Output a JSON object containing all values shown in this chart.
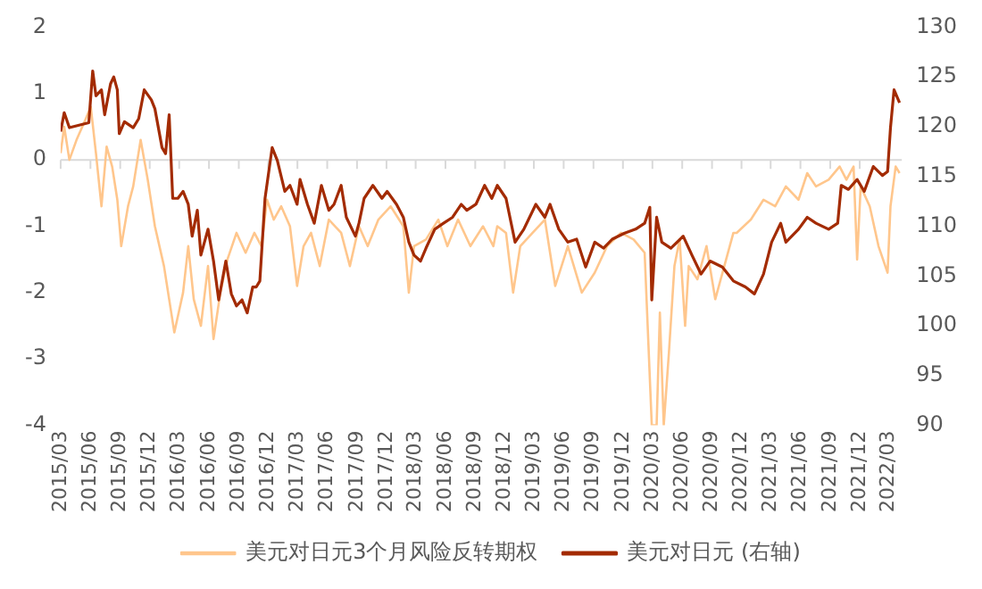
{
  "chart_data": {
    "type": "line",
    "xlim": [
      "2015-03-01",
      "2022-04-10"
    ],
    "xticks": [
      {
        "value": "2015-03",
        "label": "2015/03"
      },
      {
        "value": "2015-06",
        "label": "2015/06"
      },
      {
        "value": "2015-09",
        "label": "2015/09"
      },
      {
        "value": "2015-12",
        "label": "2015/12"
      },
      {
        "value": "2016-03",
        "label": "2016/03"
      },
      {
        "value": "2016-06",
        "label": "2016/06"
      },
      {
        "value": "2016-09",
        "label": "2016/09"
      },
      {
        "value": "2016-12",
        "label": "2016/12"
      },
      {
        "value": "2017-03",
        "label": "2017/03"
      },
      {
        "value": "2017-06",
        "label": "2017/06"
      },
      {
        "value": "2017-09",
        "label": "2017/09"
      },
      {
        "value": "2017-12",
        "label": "2017/12"
      },
      {
        "value": "2018-03",
        "label": "2018/03"
      },
      {
        "value": "2018-06",
        "label": "2018/06"
      },
      {
        "value": "2018-09",
        "label": "2018/09"
      },
      {
        "value": "2018-12",
        "label": "2018/12"
      },
      {
        "value": "2019-03",
        "label": "2019/03"
      },
      {
        "value": "2019-06",
        "label": "2019/06"
      },
      {
        "value": "2019-09",
        "label": "2019/09"
      },
      {
        "value": "2019-12",
        "label": "2019/12"
      },
      {
        "value": "2020-03",
        "label": "2020/03"
      },
      {
        "value": "2020-06",
        "label": "2020/06"
      },
      {
        "value": "2020-09",
        "label": "2020/09"
      },
      {
        "value": "2020-12",
        "label": "2020/12"
      },
      {
        "value": "2021-03",
        "label": "2021/03"
      },
      {
        "value": "2021-06",
        "label": "2021/06"
      },
      {
        "value": "2021-09",
        "label": "2021/09"
      },
      {
        "value": "2021-12",
        "label": "2021/12"
      },
      {
        "value": "2022-03",
        "label": "2022/03"
      }
    ],
    "ylim": [
      -4,
      2
    ],
    "yticks": [
      -4,
      -3,
      -2,
      -1,
      0,
      1,
      2
    ],
    "y2lim": [
      90,
      130
    ],
    "y2ticks": [
      90,
      95,
      100,
      105,
      110,
      115,
      120,
      125,
      130
    ],
    "grid": false,
    "legend": "bottom",
    "marker": "none",
    "line_style": "solid",
    "ref_lines": [
      {
        "axis": "y",
        "value": 0,
        "color": "#d9d9d9"
      }
    ],
    "series": [
      {
        "name": "美元对日元3个月风险反转期权",
        "color": "#ffc68c",
        "x": [
          "2015-03-01",
          "2015-03-12",
          "2015-03-28",
          "2015-04-19",
          "2015-05-16",
          "2015-06-02",
          "2015-06-18",
          "2015-07-05",
          "2015-07-21",
          "2015-08-07",
          "2015-08-23",
          "2015-09-04",
          "2015-09-25",
          "2015-10-11",
          "2015-11-03",
          "2015-11-25",
          "2015-12-17",
          "2016-01-14",
          "2016-01-30",
          "2016-02-15",
          "2016-03-13",
          "2016-03-29",
          "2016-04-15",
          "2016-05-07",
          "2016-05-29",
          "2016-06-15",
          "2016-07-06",
          "2016-07-28",
          "2016-08-25",
          "2016-09-22",
          "2016-10-19",
          "2016-11-10",
          "2016-11-27",
          "2016-12-18",
          "2017-01-10",
          "2017-02-06",
          "2017-02-28",
          "2017-03-20",
          "2017-04-12",
          "2017-05-09",
          "2017-06-06",
          "2017-07-14",
          "2017-08-10",
          "2017-09-07",
          "2017-10-04",
          "2017-11-06",
          "2017-12-14",
          "2018-01-22",
          "2018-02-08",
          "2018-02-24",
          "2018-04-02",
          "2018-05-10",
          "2018-06-07",
          "2018-07-10",
          "2018-08-17",
          "2018-09-25",
          "2018-10-27",
          "2018-11-08",
          "2018-12-05",
          "2018-12-27",
          "2019-01-18",
          "2019-02-25",
          "2019-04-04",
          "2019-05-06",
          "2019-06-14",
          "2019-07-27",
          "2019-09-05",
          "2019-10-13",
          "2019-11-25",
          "2020-01-03",
          "2020-02-06",
          "2020-02-28",
          "2020-03-14",
          "2020-03-24",
          "2020-04-05",
          "2020-04-21",
          "2020-05-08",
          "2020-05-24",
          "2020-06-10",
          "2020-06-21",
          "2020-07-18",
          "2020-08-15",
          "2020-09-11",
          "2020-10-09",
          "2020-11-06",
          "2020-11-16",
          "2020-12-30",
          "2021-02-07",
          "2021-03-15",
          "2021-04-17",
          "2021-05-26",
          "2021-06-22",
          "2021-07-19",
          "2021-08-27",
          "2021-09-30",
          "2021-10-21",
          "2021-11-12",
          "2021-11-23",
          "2021-12-04",
          "2022-01-01",
          "2022-01-28",
          "2022-02-25",
          "2022-03-06",
          "2022-03-22",
          "2022-04-03"
        ],
        "values": [
          0.1,
          0.5,
          0,
          0.3,
          0.6,
          0.8,
          0.1,
          -0.7,
          0.2,
          -0.1,
          -0.6,
          -1.3,
          -0.7,
          -0.4,
          0.3,
          -0.3,
          -1.0,
          -1.6,
          -2.1,
          -2.6,
          -2.0,
          -1.3,
          -2.1,
          -2.5,
          -1.6,
          -2.7,
          -2.0,
          -1.5,
          -1.1,
          -1.4,
          -1.1,
          -1.3,
          -0.6,
          -0.9,
          -0.7,
          -1.0,
          -1.9,
          -1.3,
          -1.1,
          -1.6,
          -0.9,
          -1.1,
          -1.6,
          -1.0,
          -1.3,
          -0.9,
          -0.7,
          -1.0,
          -2.0,
          -1.3,
          -1.2,
          -0.9,
          -1.3,
          -0.9,
          -1.3,
          -1.0,
          -1.3,
          -1.0,
          -1.1,
          -2.0,
          -1.3,
          -1.1,
          -0.9,
          -1.9,
          -1.3,
          -2.0,
          -1.7,
          -1.3,
          -1.1,
          -1.2,
          -1.4,
          -4,
          -4,
          -2.3,
          -4,
          -2.9,
          -1.6,
          -1.2,
          -2.5,
          -1.6,
          -1.8,
          -1.3,
          -2.1,
          -1.6,
          -1.1,
          -1.1,
          -0.9,
          -0.6,
          -0.7,
          -0.4,
          -0.6,
          -0.2,
          -0.4,
          -0.3,
          -0.1,
          -0.3,
          -0.1,
          -1.5,
          -0.4,
          -0.7,
          -1.3,
          -1.7,
          -0.7,
          -0.1,
          -0.2
        ]
      },
      {
        "name": "美元对日元 (右轴)",
        "color": "#a32b02",
        "axis": "y2",
        "x": [
          "2015-03-01",
          "2015-03-12",
          "2015-03-28",
          "2015-05-27",
          "2015-06-08",
          "2015-06-18",
          "2015-07-05",
          "2015-07-15",
          "2015-08-02",
          "2015-08-12",
          "2015-08-23",
          "2015-08-29",
          "2015-09-14",
          "2015-10-11",
          "2015-10-28",
          "2015-11-14",
          "2015-12-06",
          "2015-12-17",
          "2016-01-08",
          "2016-01-19",
          "2016-01-30",
          "2016-02-10",
          "2016-02-26",
          "2016-03-13",
          "2016-03-29",
          "2016-04-10",
          "2016-04-26",
          "2016-05-07",
          "2016-05-29",
          "2016-06-15",
          "2016-07-01",
          "2016-07-23",
          "2016-08-09",
          "2016-08-25",
          "2016-09-11",
          "2016-09-27",
          "2016-10-14",
          "2016-10-25",
          "2016-11-05",
          "2016-11-21",
          "2016-12-13",
          "2016-12-29",
          "2017-01-21",
          "2017-02-06",
          "2017-02-28",
          "2017-03-09",
          "2017-04-01",
          "2017-04-22",
          "2017-05-14",
          "2017-06-06",
          "2017-06-22",
          "2017-07-14",
          "2017-07-30",
          "2017-08-27",
          "2017-09-07",
          "2017-09-23",
          "2017-10-20",
          "2017-11-17",
          "2017-12-03",
          "2018-01-01",
          "2018-01-22",
          "2018-02-08",
          "2018-02-24",
          "2018-03-16",
          "2018-04-02",
          "2018-04-29",
          "2018-05-26",
          "2018-06-23",
          "2018-07-20",
          "2018-08-06",
          "2018-09-03",
          "2018-09-30",
          "2018-10-22",
          "2018-11-08",
          "2018-12-05",
          "2019-01-02",
          "2019-01-29",
          "2019-03-07",
          "2019-04-04",
          "2019-04-20",
          "2019-05-17",
          "2019-06-14",
          "2019-07-11",
          "2019-08-08",
          "2019-09-05",
          "2019-10-02",
          "2019-10-29",
          "2019-12-06",
          "2020-01-09",
          "2020-02-06",
          "2020-02-22",
          "2020-02-28",
          "2020-03-14",
          "2020-03-30",
          "2020-04-27",
          "2020-06-04",
          "2020-07-01",
          "2020-07-29",
          "2020-08-26",
          "2020-10-03",
          "2020-11-06",
          "2020-12-13",
          "2021-01-10",
          "2021-02-07",
          "2021-03-04",
          "2021-04-01",
          "2021-04-17",
          "2021-05-26",
          "2021-06-22",
          "2021-07-19",
          "2021-08-27",
          "2021-09-24",
          "2021-10-05",
          "2021-10-27",
          "2021-11-23",
          "2021-12-15",
          "2022-01-12",
          "2022-02-09",
          "2022-02-25",
          "2022-03-06",
          "2022-03-17",
          "2022-04-03"
        ],
        "values": [
          119.5,
          121.4,
          119.9,
          120.4,
          125.6,
          123.1,
          123.7,
          121.2,
          124.3,
          125.0,
          123.7,
          119.3,
          120.5,
          119.9,
          120.8,
          123.7,
          122.7,
          121.8,
          117.9,
          117.3,
          121.2,
          112.8,
          112.8,
          113.5,
          112.2,
          109.0,
          111.6,
          107.1,
          109.7,
          106.5,
          102.6,
          106.5,
          103.2,
          102.0,
          102.6,
          101.3,
          103.9,
          103.9,
          104.5,
          112.8,
          117.9,
          116.6,
          113.5,
          114.1,
          112.2,
          114.7,
          112.2,
          110.3,
          114.1,
          111.6,
          112.2,
          114.1,
          110.9,
          109.0,
          110.3,
          112.8,
          114.1,
          112.8,
          113.5,
          112.2,
          110.9,
          108.4,
          107.1,
          106.5,
          107.8,
          109.7,
          110.3,
          110.9,
          112.2,
          111.6,
          112.2,
          114.1,
          112.8,
          114.1,
          112.8,
          108.4,
          109.7,
          112.2,
          110.9,
          112.2,
          109.7,
          108.4,
          108.7,
          105.9,
          108.4,
          107.8,
          108.7,
          109.3,
          109.7,
          110.3,
          111.9,
          102.6,
          110.9,
          108.4,
          107.8,
          109.0,
          107.1,
          105.2,
          106.5,
          105.9,
          104.5,
          103.9,
          103.2,
          105.2,
          108.4,
          110.3,
          108.4,
          109.7,
          110.9,
          110.3,
          109.7,
          110.3,
          114.1,
          113.7,
          114.7,
          113.5,
          116.0,
          115.1,
          115.5,
          119.9,
          123.7,
          122.4
        ]
      }
    ]
  }
}
